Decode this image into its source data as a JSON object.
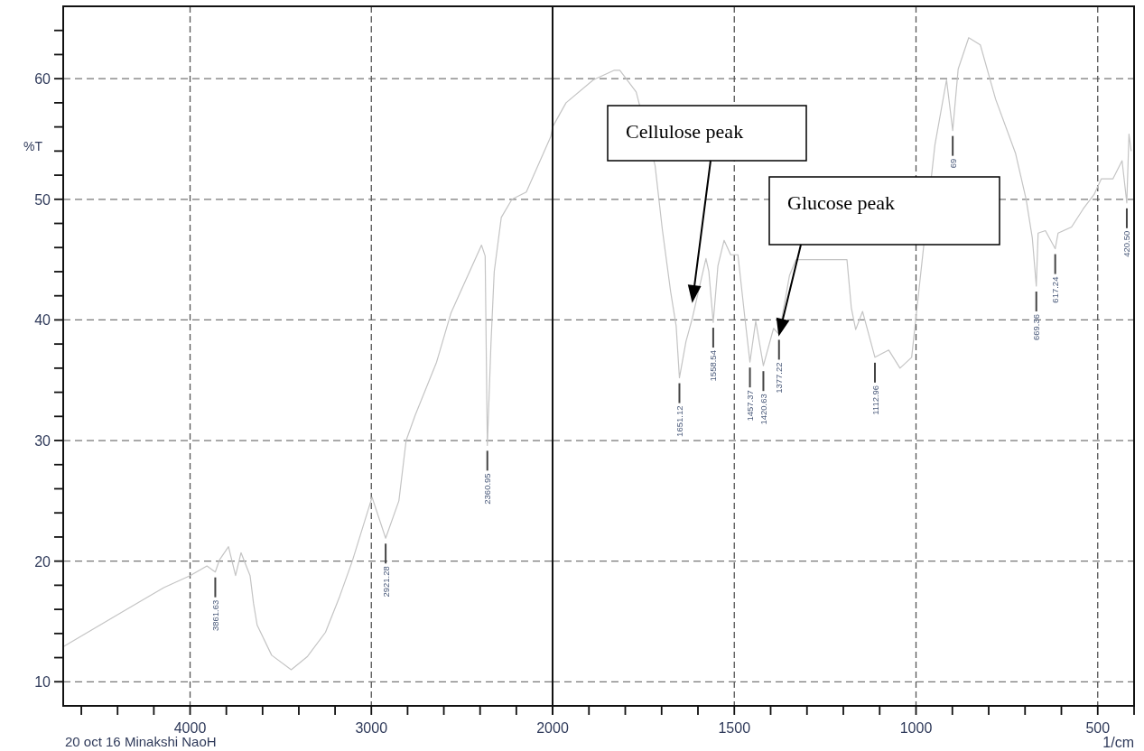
{
  "chart_data": [
    {
      "type": "line",
      "ylabel": "%T",
      "grid": true,
      "xlim": [
        4700,
        2000
      ],
      "ylim": [
        8,
        66
      ],
      "xticks": [
        {
          "value": 4600,
          "label": null
        },
        {
          "value": 4400,
          "label": null
        },
        {
          "value": 4200,
          "label": null
        },
        4000,
        {
          "value": 3800,
          "label": null
        },
        {
          "value": 3600,
          "label": null
        },
        {
          "value": 3400,
          "label": null
        },
        {
          "value": 3200,
          "label": null
        },
        3000,
        {
          "value": 2800,
          "label": null
        },
        {
          "value": 2600,
          "label": null
        },
        {
          "value": 2400,
          "label": null
        },
        {
          "value": 2200,
          "label": null
        },
        {
          "value": 2000,
          "label": null
        }
      ],
      "yticks": [
        10,
        {
          "value": 12,
          "label": null
        },
        {
          "value": 14,
          "label": null
        },
        {
          "value": 16,
          "label": null
        },
        {
          "value": 18,
          "label": null
        },
        20,
        {
          "value": 22,
          "label": null
        },
        {
          "value": 24,
          "label": null
        },
        {
          "value": 26,
          "label": null
        },
        {
          "value": 28,
          "label": null
        },
        30,
        {
          "value": 32,
          "label": null
        },
        {
          "value": 34,
          "label": null
        },
        {
          "value": 36,
          "label": null
        },
        {
          "value": 38,
          "label": null
        },
        40,
        {
          "value": 42,
          "label": null
        },
        {
          "value": 44,
          "label": null
        },
        {
          "value": 46,
          "label": null
        },
        {
          "value": 48,
          "label": null
        },
        50,
        {
          "value": 52,
          "label": null
        },
        {
          "value": 54,
          "label": null
        },
        {
          "value": 56,
          "label": null
        },
        {
          "value": 58,
          "label": null
        },
        60,
        {
          "value": 62,
          "label": null
        },
        {
          "value": 64,
          "label": null
        }
      ],
      "x": [
        4700,
        4362,
        4145,
        4000,
        3907,
        3861,
        3838,
        3788,
        3749,
        3719,
        3669,
        3650,
        3630,
        3550,
        3442,
        3352,
        3253,
        3174,
        3105,
        2996,
        2921,
        2848,
        2808,
        2758,
        2640,
        2560,
        2392,
        2372,
        2360,
        2340,
        2322,
        2283,
        2224,
        2145,
        2010,
        2000
      ],
      "series": [
        {
          "color": "#c4c4c4",
          "values": [
            12.9,
            15.9,
            17.8,
            18.8,
            19.6,
            19.1,
            20.1,
            21.2,
            18.8,
            20.7,
            18.8,
            16.5,
            14.7,
            12.2,
            11.0,
            12.1,
            14.1,
            17.1,
            20.0,
            25.3,
            21.9,
            25.0,
            30.0,
            32.1,
            36.5,
            40.6,
            46.2,
            45.3,
            29.6,
            38.0,
            44.0,
            48.5,
            50.0,
            50.6,
            55.2,
            56.0
          ]
        }
      ],
      "annotations": [
        {
          "text": "3861.63",
          "x": 3861,
          "y": 19.1
        },
        {
          "text": "2921.28",
          "x": 2921,
          "y": 21.9
        },
        {
          "text": "2360.95",
          "x": 2360,
          "y": 29.6
        },
        "20 oct 16 Minakshi NaoH"
      ]
    },
    {
      "type": "line",
      "xlabel": "1/cm",
      "grid": true,
      "tick_labels": "x",
      "xlim": [
        2000,
        400
      ],
      "ylim": [
        8,
        66
      ],
      "xticks": [
        2000,
        {
          "value": 1900,
          "label": null
        },
        {
          "value": 1800,
          "label": null
        },
        {
          "value": 1700,
          "label": null
        },
        {
          "value": 1600,
          "label": null
        },
        1500,
        {
          "value": 1400,
          "label": null
        },
        {
          "value": 1300,
          "label": null
        },
        {
          "value": 1200,
          "label": null
        },
        {
          "value": 1100,
          "label": null
        },
        1000,
        {
          "value": 900,
          "label": null
        },
        {
          "value": 800,
          "label": null
        },
        {
          "value": 700,
          "label": null
        },
        {
          "value": 600,
          "label": null
        },
        500,
        {
          "value": 400,
          "label": null
        }
      ],
      "yticks": [
        10,
        20,
        30,
        40,
        50,
        60
      ],
      "x": [
        2000,
        1963,
        1888,
        1830,
        1815,
        1770,
        1718,
        1698,
        1675,
        1660,
        1651,
        1633,
        1615,
        1578,
        1570,
        1558,
        1545,
        1528,
        1510,
        1490,
        1471,
        1457,
        1441,
        1420,
        1392,
        1377,
        1348,
        1330,
        1190,
        1178,
        1166,
        1147,
        1113,
        1075,
        1044,
        1012,
        980,
        948,
        916,
        899,
        884,
        855,
        823,
        781,
        726,
        697,
        680,
        669,
        664,
        644,
        617,
        609,
        572,
        540,
        510,
        490,
        458,
        433,
        420,
        414,
        408
      ],
      "series": [
        {
          "color": "#c4c4c4",
          "values": [
            56.0,
            58.0,
            59.9,
            60.7,
            60.7,
            58.9,
            52.8,
            47.5,
            42.3,
            39.5,
            35.2,
            38.2,
            40.2,
            45.1,
            44.0,
            39.8,
            44.5,
            46.6,
            45.4,
            45.4,
            40.2,
            36.5,
            39.9,
            36.2,
            39.3,
            38.8,
            43.7,
            45.0,
            45.0,
            41.0,
            39.2,
            40.7,
            36.9,
            37.5,
            36.0,
            36.9,
            45.8,
            54.5,
            59.9,
            55.7,
            60.8,
            63.4,
            62.8,
            58.3,
            53.8,
            50.0,
            46.8,
            42.8,
            47.2,
            47.4,
            45.9,
            47.2,
            47.7,
            49.2,
            50.4,
            51.7,
            51.7,
            53.2,
            49.7,
            55.4,
            54.0
          ]
        }
      ],
      "annotations": [
        "Cellulose peak",
        "Glucose peak",
        {
          "text": "1651.12",
          "x": 1651,
          "y": 35.2
        },
        {
          "text": "1558.54",
          "x": 1558,
          "y": 39.8
        },
        {
          "text": "1457.37",
          "x": 1457,
          "y": 36.5
        },
        {
          "text": "1420.63",
          "x": 1420,
          "y": 36.2
        },
        {
          "text": "1377.22",
          "x": 1377,
          "y": 38.8
        },
        {
          "text": "1112.96",
          "x": 1113,
          "y": 36.9
        },
        {
          "text": "69",
          "x": 899,
          "y": 55.7
        },
        {
          "text": "669.36",
          "x": 669,
          "y": 42.8
        },
        {
          "text": "617.24",
          "x": 617,
          "y": 45.9
        },
        {
          "text": "420.50",
          "x": 420,
          "y": 49.7
        }
      ]
    }
  ]
}
